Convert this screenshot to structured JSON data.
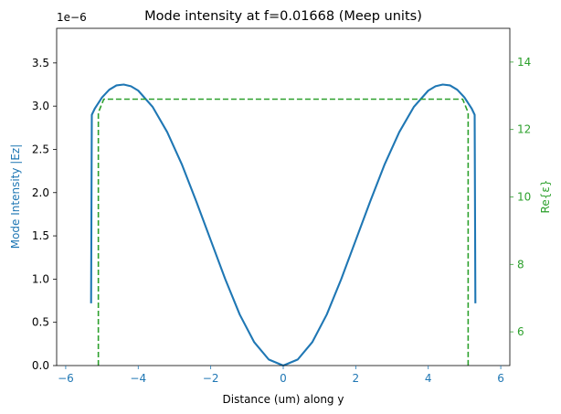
{
  "chart_data": {
    "type": "line",
    "title": "Mode intensity at f=0.01668 (Meep units)",
    "xlabel": "Distance (um) along y",
    "ylabel_left": "Mode Intensity |Ez|",
    "ylabel_right": "Re{ε}",
    "offset_text": "1e−6",
    "xlim": [
      -6.25,
      6.25
    ],
    "ylim_left": [
      0.0,
      3.9
    ],
    "ylim_right": [
      5.0,
      15.0
    ],
    "x_ticks": [
      -6,
      -4,
      -2,
      0,
      2,
      4,
      6
    ],
    "x_tick_labels": [
      "−6",
      "−4",
      "−2",
      "0",
      "2",
      "4",
      "6"
    ],
    "y_left_ticks": [
      0.0,
      0.5,
      1.0,
      1.5,
      2.0,
      2.5,
      3.0,
      3.5
    ],
    "y_left_tick_labels": [
      "0.0",
      "0.5",
      "1.0",
      "1.5",
      "2.0",
      "2.5",
      "3.0",
      "3.5"
    ],
    "y_right_ticks": [
      6,
      8,
      10,
      12,
      14
    ],
    "y_right_tick_labels": [
      "6",
      "8",
      "10",
      "12",
      "14"
    ],
    "series": [
      {
        "name": "Mode Intensity |Ez|",
        "axis": "left",
        "color": "#1f77b4",
        "style": "solid",
        "x": [
          -5.3,
          -5.28,
          -5.2,
          -5.0,
          -4.8,
          -4.6,
          -4.4,
          -4.2,
          -4.0,
          -3.6,
          -3.2,
          -2.8,
          -2.4,
          -2.0,
          -1.6,
          -1.2,
          -0.8,
          -0.4,
          0.0,
          0.4,
          0.8,
          1.2,
          1.6,
          2.0,
          2.4,
          2.8,
          3.2,
          3.6,
          4.0,
          4.2,
          4.4,
          4.6,
          4.8,
          5.0,
          5.2,
          5.28,
          5.3
        ],
        "y": [
          0.72,
          2.9,
          2.97,
          3.1,
          3.19,
          3.24,
          3.25,
          3.23,
          3.18,
          2.99,
          2.7,
          2.33,
          1.9,
          1.45,
          1.0,
          0.59,
          0.27,
          0.07,
          0.0,
          0.07,
          0.27,
          0.59,
          1.0,
          1.45,
          1.9,
          2.33,
          2.7,
          2.99,
          3.18,
          3.23,
          3.25,
          3.24,
          3.19,
          3.1,
          2.97,
          2.9,
          0.72
        ]
      },
      {
        "name": "Re{ε}",
        "axis": "right",
        "color": "#2ca02c",
        "style": "dashed",
        "x": [
          -5.1,
          -5.1,
          -4.95,
          4.95,
          5.1,
          5.1
        ],
        "y": [
          5.0,
          12.5,
          12.9,
          12.9,
          12.5,
          5.0
        ]
      }
    ]
  }
}
